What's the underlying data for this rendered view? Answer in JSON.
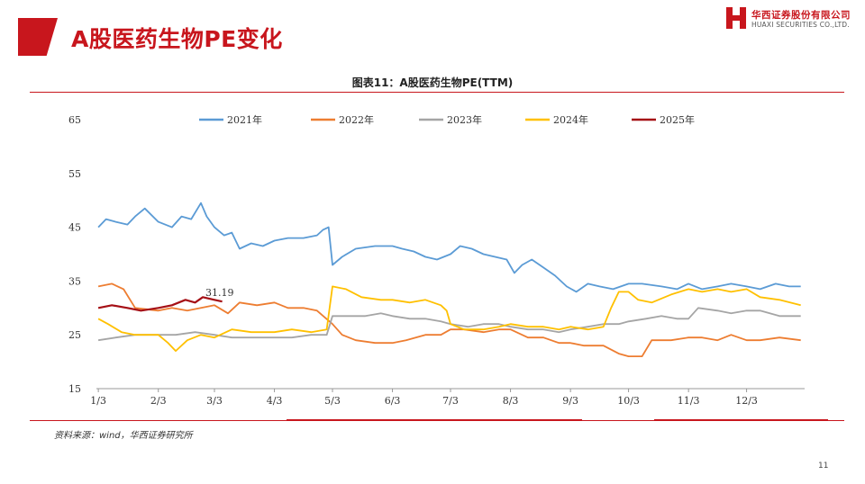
{
  "slide": {
    "title": "A股医药生物PE变化",
    "source": "资料来源：wind，华西证券研究所",
    "page_number": "11"
  },
  "logo": {
    "name_cn": "华西证券股份有限公司",
    "name_en": "HUAXI SECURITIES CO.,LTD."
  },
  "colors": {
    "brand_red": "#c8161d",
    "s2021": "#5b9bd5",
    "s2022": "#ed7d31",
    "s2023": "#a5a5a5",
    "s2024": "#ffc000",
    "s2025": "#a50f15"
  },
  "chart_data": {
    "type": "line",
    "title": "图表11：A股医药生物PE(TTM)",
    "xlabel": "",
    "ylabel": "",
    "ylim": [
      15,
      65
    ],
    "yticks": [
      15,
      25,
      35,
      45,
      55,
      65
    ],
    "xticks": [
      "1/3",
      "2/3",
      "3/3",
      "4/3",
      "5/3",
      "6/3",
      "7/3",
      "8/3",
      "9/3",
      "10/3",
      "11/3",
      "12/3"
    ],
    "legend_position": "top",
    "grid": false,
    "annotations": [
      {
        "text": "31.19",
        "x": "3/3",
        "y": 31.19
      }
    ],
    "series": [
      {
        "name": "2021年",
        "color": "#5b9bd5",
        "points": [
          [
            "1/3",
            45
          ],
          [
            "1/7",
            46.5
          ],
          [
            "1/12",
            46
          ],
          [
            "1/18",
            45.5
          ],
          [
            "1/22",
            47
          ],
          [
            "1/27",
            48.5
          ],
          [
            "2/3",
            46
          ],
          [
            "2/10",
            45
          ],
          [
            "2/15",
            47
          ],
          [
            "2/20",
            46.5
          ],
          [
            "2/25",
            49.5
          ],
          [
            "2/28",
            47
          ],
          [
            "3/3",
            45
          ],
          [
            "3/8",
            43.5
          ],
          [
            "3/12",
            44
          ],
          [
            "3/16",
            41
          ],
          [
            "3/22",
            42
          ],
          [
            "3/28",
            41.5
          ],
          [
            "4/3",
            42.5
          ],
          [
            "4/10",
            43
          ],
          [
            "4/18",
            43
          ],
          [
            "4/25",
            43.5
          ],
          [
            "4/28",
            44.5
          ],
          [
            "5/1",
            45
          ],
          [
            "5/3",
            38
          ],
          [
            "5/8",
            39.5
          ],
          [
            "5/15",
            41
          ],
          [
            "5/25",
            41.5
          ],
          [
            "6/3",
            41.5
          ],
          [
            "6/8",
            41
          ],
          [
            "6/14",
            40.5
          ],
          [
            "6/20",
            39.5
          ],
          [
            "6/26",
            39
          ],
          [
            "7/3",
            40
          ],
          [
            "7/8",
            41.5
          ],
          [
            "7/14",
            41
          ],
          [
            "7/20",
            40
          ],
          [
            "7/26",
            39.5
          ],
          [
            "8/1",
            39
          ],
          [
            "8/5",
            36.5
          ],
          [
            "8/9",
            38
          ],
          [
            "8/14",
            39
          ],
          [
            "8/20",
            37.5
          ],
          [
            "8/26",
            36
          ],
          [
            "9/1",
            34
          ],
          [
            "9/6",
            33
          ],
          [
            "9/12",
            34.5
          ],
          [
            "9/18",
            34
          ],
          [
            "9/25",
            33.5
          ],
          [
            "10/3",
            34.5
          ],
          [
            "10/10",
            34.5
          ],
          [
            "10/20",
            34
          ],
          [
            "10/28",
            33.5
          ],
          [
            "11/3",
            34.5
          ],
          [
            "11/10",
            33.5
          ],
          [
            "11/18",
            34
          ],
          [
            "11/25",
            34.5
          ],
          [
            "12/3",
            34
          ],
          [
            "12/10",
            33.5
          ],
          [
            "12/18",
            34.5
          ],
          [
            "12/25",
            34
          ],
          [
            "12/31",
            34
          ]
        ]
      },
      {
        "name": "2022年",
        "color": "#ed7d31",
        "points": [
          [
            "1/3",
            34
          ],
          [
            "1/10",
            34.5
          ],
          [
            "1/16",
            33.5
          ],
          [
            "1/22",
            30
          ],
          [
            "2/3",
            29.5
          ],
          [
            "2/10",
            30
          ],
          [
            "2/18",
            29.5
          ],
          [
            "2/25",
            30
          ],
          [
            "3/3",
            30.5
          ],
          [
            "3/10",
            29
          ],
          [
            "3/16",
            31
          ],
          [
            "3/25",
            30.5
          ],
          [
            "4/3",
            31
          ],
          [
            "4/10",
            30
          ],
          [
            "4/18",
            30
          ],
          [
            "4/25",
            29.5
          ],
          [
            "5/3",
            27
          ],
          [
            "5/8",
            25
          ],
          [
            "5/15",
            24
          ],
          [
            "5/25",
            23.5
          ],
          [
            "6/3",
            23.5
          ],
          [
            "6/10",
            24
          ],
          [
            "6/20",
            25
          ],
          [
            "6/28",
            25
          ],
          [
            "7/3",
            26
          ],
          [
            "7/10",
            26
          ],
          [
            "7/20",
            25.5
          ],
          [
            "7/28",
            26
          ],
          [
            "8/3",
            26
          ],
          [
            "8/12",
            24.5
          ],
          [
            "8/20",
            24.5
          ],
          [
            "8/28",
            23.5
          ],
          [
            "9/3",
            23.5
          ],
          [
            "9/10",
            23
          ],
          [
            "9/20",
            23
          ],
          [
            "9/28",
            21.5
          ],
          [
            "10/3",
            21
          ],
          [
            "10/10",
            21
          ],
          [
            "10/15",
            24
          ],
          [
            "10/25",
            24
          ],
          [
            "11/3",
            24.5
          ],
          [
            "11/10",
            24.5
          ],
          [
            "11/18",
            24
          ],
          [
            "11/25",
            25
          ],
          [
            "12/3",
            24
          ],
          [
            "12/10",
            24
          ],
          [
            "12/20",
            24.5
          ],
          [
            "12/31",
            24
          ]
        ]
      },
      {
        "name": "2023年",
        "color": "#a5a5a5",
        "points": [
          [
            "1/3",
            24
          ],
          [
            "1/12",
            24.5
          ],
          [
            "1/22",
            25
          ],
          [
            "2/3",
            25
          ],
          [
            "2/12",
            25
          ],
          [
            "2/22",
            25.5
          ],
          [
            "3/3",
            25
          ],
          [
            "3/12",
            24.5
          ],
          [
            "3/22",
            24.5
          ],
          [
            "4/3",
            24.5
          ],
          [
            "4/12",
            24.5
          ],
          [
            "4/22",
            25
          ],
          [
            "4/30",
            25
          ],
          [
            "5/3",
            28.5
          ],
          [
            "5/10",
            28.5
          ],
          [
            "5/20",
            28.5
          ],
          [
            "5/28",
            29
          ],
          [
            "6/3",
            28.5
          ],
          [
            "6/12",
            28
          ],
          [
            "6/20",
            28
          ],
          [
            "6/28",
            27.5
          ],
          [
            "7/3",
            27
          ],
          [
            "7/12",
            26.5
          ],
          [
            "7/20",
            27
          ],
          [
            "7/28",
            27
          ],
          [
            "8/3",
            26.5
          ],
          [
            "8/12",
            26
          ],
          [
            "8/20",
            26
          ],
          [
            "8/28",
            25.5
          ],
          [
            "9/3",
            26
          ],
          [
            "9/12",
            26.5
          ],
          [
            "9/20",
            27
          ],
          [
            "9/28",
            27
          ],
          [
            "10/3",
            27.5
          ],
          [
            "10/12",
            28
          ],
          [
            "10/20",
            28.5
          ],
          [
            "10/28",
            28
          ],
          [
            "11/3",
            28
          ],
          [
            "11/8",
            30
          ],
          [
            "11/18",
            29.5
          ],
          [
            "11/25",
            29
          ],
          [
            "12/3",
            29.5
          ],
          [
            "12/10",
            29.5
          ],
          [
            "12/20",
            28.5
          ],
          [
            "12/31",
            28.5
          ]
        ]
      },
      {
        "name": "2024年",
        "color": "#ffc000",
        "points": [
          [
            "1/3",
            28
          ],
          [
            "1/8",
            27
          ],
          [
            "1/15",
            25.5
          ],
          [
            "1/22",
            25
          ],
          [
            "2/3",
            25
          ],
          [
            "2/8",
            23.5
          ],
          [
            "2/12",
            22
          ],
          [
            "2/18",
            24
          ],
          [
            "2/25",
            25
          ],
          [
            "3/3",
            24.5
          ],
          [
            "3/12",
            26
          ],
          [
            "3/22",
            25.5
          ],
          [
            "4/3",
            25.5
          ],
          [
            "4/12",
            26
          ],
          [
            "4/22",
            25.5
          ],
          [
            "4/30",
            26
          ],
          [
            "5/3",
            34
          ],
          [
            "5/10",
            33.5
          ],
          [
            "5/18",
            32
          ],
          [
            "5/28",
            31.5
          ],
          [
            "6/3",
            31.5
          ],
          [
            "6/12",
            31
          ],
          [
            "6/20",
            31.5
          ],
          [
            "6/28",
            30.5
          ],
          [
            "7/1",
            29.5
          ],
          [
            "7/3",
            27
          ],
          [
            "7/10",
            26
          ],
          [
            "7/20",
            26
          ],
          [
            "7/28",
            26.5
          ],
          [
            "8/3",
            27
          ],
          [
            "8/12",
            26.5
          ],
          [
            "8/20",
            26.5
          ],
          [
            "8/28",
            26
          ],
          [
            "9/3",
            26.5
          ],
          [
            "9/12",
            26
          ],
          [
            "9/20",
            26.5
          ],
          [
            "9/24",
            30
          ],
          [
            "9/28",
            33
          ],
          [
            "10/3",
            33
          ],
          [
            "10/8",
            31.5
          ],
          [
            "10/15",
            31
          ],
          [
            "10/25",
            32.5
          ],
          [
            "11/3",
            33.5
          ],
          [
            "11/10",
            33
          ],
          [
            "11/18",
            33.5
          ],
          [
            "11/25",
            33
          ],
          [
            "12/3",
            33.5
          ],
          [
            "12/10",
            32
          ],
          [
            "12/20",
            31.5
          ],
          [
            "12/31",
            30.5
          ]
        ]
      },
      {
        "name": "2025年",
        "color": "#a50f15",
        "points": [
          [
            "1/3",
            30
          ],
          [
            "1/10",
            30.5
          ],
          [
            "1/18",
            30
          ],
          [
            "1/25",
            29.5
          ],
          [
            "2/3",
            30
          ],
          [
            "2/10",
            30.5
          ],
          [
            "2/17",
            31.5
          ],
          [
            "2/22",
            31
          ],
          [
            "2/26",
            32
          ],
          [
            "3/3",
            31.5
          ],
          [
            "3/7",
            31.19
          ]
        ]
      }
    ]
  }
}
